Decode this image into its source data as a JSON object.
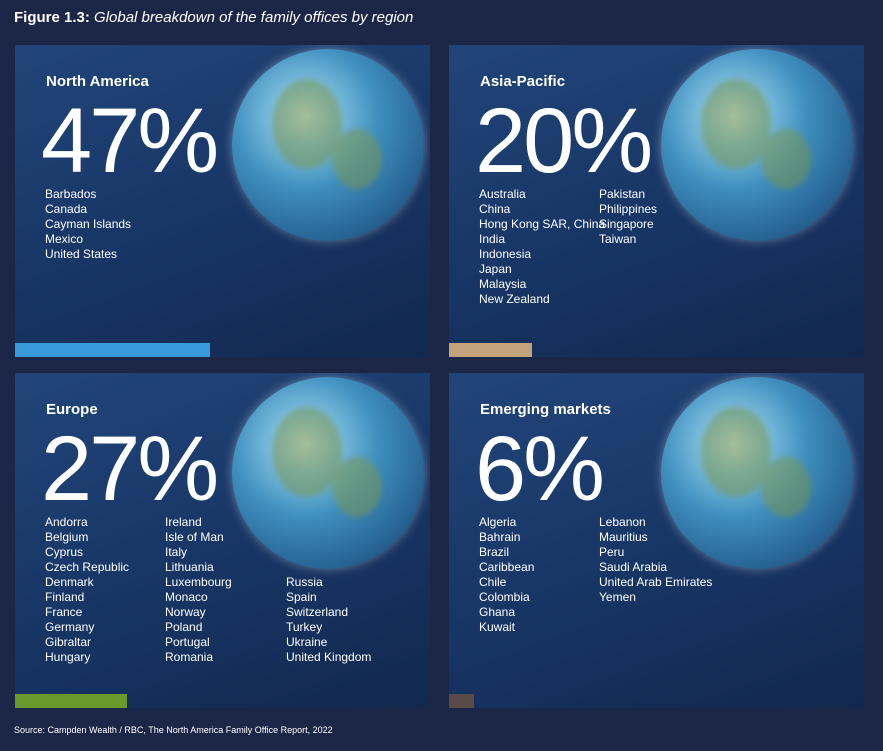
{
  "title_prefix": "Figure 1.3:",
  "title": "Global breakdown of the family offices by region",
  "chart_data": {
    "type": "bar",
    "categories": [
      "North America",
      "Asia-Pacific",
      "Europe",
      "Emerging markets"
    ],
    "values": [
      47,
      20,
      27,
      6
    ],
    "value_labels": [
      "47%",
      "20%",
      "27%",
      "6%"
    ],
    "colors": [
      "#3a9ad9",
      "#c2a37c",
      "#6a9a2c",
      "#5a4a48"
    ],
    "xlim": [
      0,
      100
    ]
  },
  "countries": [
    [
      [
        "Barbados",
        "Canada",
        "Cayman Islands",
        "Mexico",
        "United States"
      ]
    ],
    [
      [
        "Australia",
        "China",
        "Hong Kong SAR, China",
        "India",
        "Indonesia",
        "Japan",
        "Malaysia",
        "New Zealand"
      ],
      [
        "Pakistan",
        "Philippines",
        "Singapore",
        "Taiwan"
      ]
    ],
    [
      [
        "Andorra",
        "Belgium",
        "Cyprus",
        "Czech Republic",
        "Denmark",
        "Finland",
        "France",
        "Germany",
        "Gibraltar",
        "Hungary"
      ],
      [
        "Ireland",
        "Isle of Man",
        "Italy",
        "Lithuania",
        "Luxembourg",
        "Monaco",
        "Norway",
        "Poland",
        "Portugal",
        "Romania"
      ],
      [
        "Russia",
        "Spain",
        "Switzerland",
        "Turkey",
        "Ukraine",
        "United Kingdom"
      ]
    ],
    [
      [
        "Algeria",
        "Bahrain",
        "Brazil",
        "Caribbean",
        "Chile",
        "Colombia",
        "Ghana",
        "Kuwait"
      ],
      [
        "Lebanon",
        "Mauritius",
        "Peru",
        "Saudi Arabia",
        "United Arab Emirates",
        "Yemen"
      ]
    ]
  ],
  "source": "Source: Campden Wealth / RBC, The North America Family Office Report, 2022"
}
